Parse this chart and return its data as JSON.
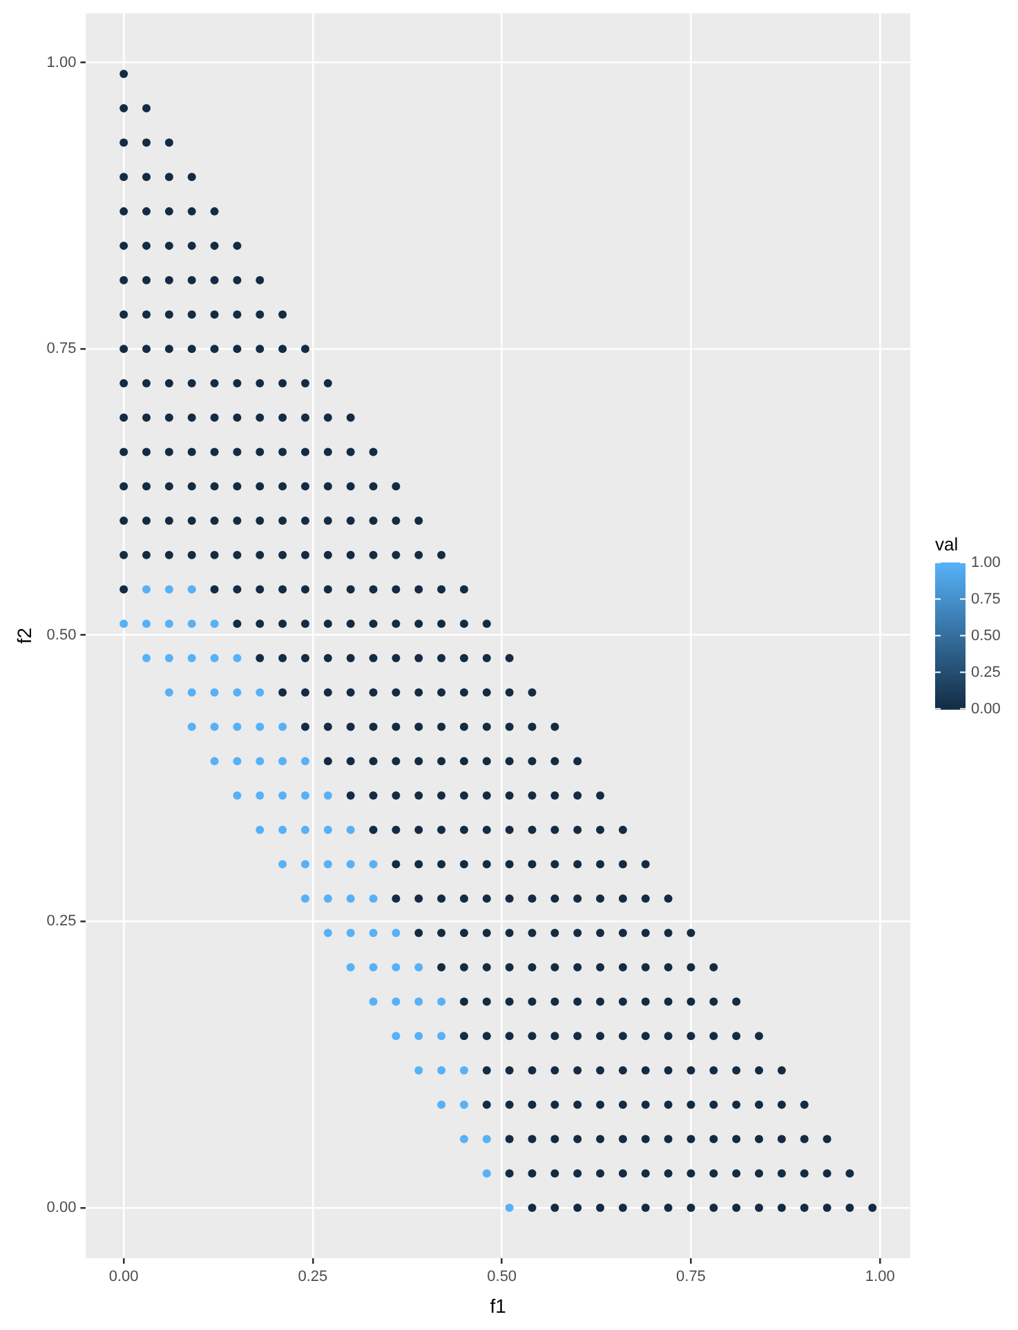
{
  "chart_data": {
    "type": "scatter",
    "xlabel": "f1",
    "ylabel": "f2",
    "clabel": "val",
    "xlim": [
      -0.05,
      1.04
    ],
    "ylim": [
      -0.044,
      1.043
    ],
    "xticks": [
      {
        "value": 0,
        "label": "0.00"
      },
      {
        "value": 0.25,
        "label": "0.25"
      },
      {
        "value": 0.5,
        "label": "0.50"
      },
      {
        "value": 0.75,
        "label": "0.75"
      },
      {
        "value": 1,
        "label": "1.00"
      }
    ],
    "yticks": [
      {
        "value": 0,
        "label": "0.00"
      },
      {
        "value": 0.25,
        "label": "0.25"
      },
      {
        "value": 0.5,
        "label": "0.50"
      },
      {
        "value": 0.75,
        "label": "0.75"
      },
      {
        "value": 1,
        "label": "1.00"
      }
    ],
    "clim": [
      0,
      1
    ],
    "cticks": [
      {
        "value": 0,
        "label": "0.00"
      },
      {
        "value": 0.25,
        "label": "0.25"
      },
      {
        "value": 0.5,
        "label": "0.50"
      },
      {
        "value": 0.75,
        "label": "0.75"
      },
      {
        "value": 1,
        "label": "1.00"
      }
    ],
    "colors": [
      "#132b43",
      "#56b1f7"
    ],
    "grid": true,
    "legend": false,
    "marker": "circle",
    "series": [
      {
        "color": "#132b43",
        "x": [
          0.54,
          0.57,
          0.6,
          0.63,
          0.66,
          0.69,
          0.72,
          0.75,
          0.78,
          0.81,
          0.84,
          0.87,
          0.9,
          0.93,
          0.96,
          0.99,
          0.51,
          0.54,
          0.57,
          0.6,
          0.63,
          0.66,
          0.69,
          0.72,
          0.75,
          0.78,
          0.81,
          0.84,
          0.87,
          0.9,
          0.93,
          0.96,
          0.51,
          0.54,
          0.57,
          0.6,
          0.63,
          0.66,
          0.69,
          0.72,
          0.75,
          0.78,
          0.81,
          0.84,
          0.87,
          0.9,
          0.93,
          0.48,
          0.51,
          0.54,
          0.57,
          0.6,
          0.63,
          0.66,
          0.69,
          0.72,
          0.75,
          0.78,
          0.81,
          0.84,
          0.87,
          0.9,
          0.48,
          0.51,
          0.54,
          0.57,
          0.6,
          0.63,
          0.66,
          0.69,
          0.72,
          0.75,
          0.78,
          0.81,
          0.84,
          0.87,
          0.45,
          0.48,
          0.51,
          0.54,
          0.57,
          0.6,
          0.63,
          0.66,
          0.69,
          0.72,
          0.75,
          0.78,
          0.81,
          0.84,
          0.45,
          0.48,
          0.51,
          0.54,
          0.57,
          0.6,
          0.63,
          0.66,
          0.69,
          0.72,
          0.75,
          0.78,
          0.81,
          0.42,
          0.45,
          0.48,
          0.51,
          0.54,
          0.57,
          0.6,
          0.63,
          0.66,
          0.69,
          0.72,
          0.75,
          0.78,
          0.39,
          0.42,
          0.45,
          0.48,
          0.51,
          0.54,
          0.57,
          0.6,
          0.63,
          0.66,
          0.69,
          0.72,
          0.75,
          0.36,
          0.39,
          0.42,
          0.45,
          0.48,
          0.51,
          0.54,
          0.57,
          0.6,
          0.63,
          0.66,
          0.69,
          0.72,
          0.36,
          0.39,
          0.42,
          0.45,
          0.48,
          0.51,
          0.54,
          0.57,
          0.6,
          0.63,
          0.66,
          0.69,
          0.33,
          0.36,
          0.39,
          0.42,
          0.45,
          0.48,
          0.51,
          0.54,
          0.57,
          0.6,
          0.63,
          0.66,
          0.3,
          0.33,
          0.36,
          0.39,
          0.42,
          0.45,
          0.48,
          0.51,
          0.54,
          0.57,
          0.6,
          0.63,
          0.27,
          0.3,
          0.33,
          0.36,
          0.39,
          0.42,
          0.45,
          0.48,
          0.51,
          0.54,
          0.57,
          0.6,
          0.24,
          0.27,
          0.3,
          0.33,
          0.36,
          0.39,
          0.42,
          0.45,
          0.48,
          0.51,
          0.54,
          0.57,
          0.21,
          0.24,
          0.27,
          0.3,
          0.33,
          0.36,
          0.39,
          0.42,
          0.45,
          0.48,
          0.51,
          0.54,
          0.18,
          0.21,
          0.24,
          0.27,
          0.3,
          0.33,
          0.36,
          0.39,
          0.42,
          0.45,
          0.48,
          0.51,
          0.15,
          0.18,
          0.21,
          0.24,
          0.27,
          0.3,
          0.33,
          0.36,
          0.39,
          0.42,
          0.45,
          0.48,
          0,
          0.12,
          0.15,
          0.18,
          0.21,
          0.24,
          0.27,
          0.3,
          0.33,
          0.36,
          0.39,
          0.42,
          0.45,
          0,
          0.03,
          0.06,
          0.09,
          0.12,
          0.15,
          0.18,
          0.21,
          0.24,
          0.27,
          0.3,
          0.33,
          0.36,
          0.39,
          0.42,
          0,
          0.03,
          0.06,
          0.09,
          0.12,
          0.15,
          0.18,
          0.21,
          0.24,
          0.27,
          0.3,
          0.33,
          0.36,
          0.39,
          0,
          0.03,
          0.06,
          0.09,
          0.12,
          0.15,
          0.18,
          0.21,
          0.24,
          0.27,
          0.3,
          0.33,
          0.36,
          0,
          0.03,
          0.06,
          0.09,
          0.12,
          0.15,
          0.18,
          0.21,
          0.24,
          0.27,
          0.3,
          0.33,
          0,
          0.03,
          0.06,
          0.09,
          0.12,
          0.15,
          0.18,
          0.21,
          0.24,
          0.27,
          0.3,
          0,
          0.03,
          0.06,
          0.09,
          0.12,
          0.15,
          0.18,
          0.21,
          0.24,
          0.27,
          0,
          0.03,
          0.06,
          0.09,
          0.12,
          0.15,
          0.18,
          0.21,
          0.24,
          0,
          0.03,
          0.06,
          0.09,
          0.12,
          0.15,
          0.18,
          0.21,
          0,
          0.03,
          0.06,
          0.09,
          0.12,
          0.15,
          0.18,
          0,
          0.03,
          0.06,
          0.09,
          0.12,
          0.15,
          0,
          0.03,
          0.06,
          0.09,
          0.12,
          0,
          0.03,
          0.06,
          0.09,
          0,
          0.03,
          0.06,
          0,
          0.03,
          0
        ],
        "values": [
          0,
          0,
          0,
          0,
          0,
          0,
          0,
          0,
          0,
          0,
          0,
          0,
          0,
          0,
          0,
          0,
          0.03,
          0.03,
          0.03,
          0.03,
          0.03,
          0.03,
          0.03,
          0.03,
          0.03,
          0.03,
          0.03,
          0.03,
          0.03,
          0.03,
          0.03,
          0.03,
          0.06,
          0.06,
          0.06,
          0.06,
          0.06,
          0.06,
          0.06,
          0.06,
          0.06,
          0.06,
          0.06,
          0.06,
          0.06,
          0.06,
          0.06,
          0.09,
          0.09,
          0.09,
          0.09,
          0.09,
          0.09,
          0.09,
          0.09,
          0.09,
          0.09,
          0.09,
          0.09,
          0.09,
          0.09,
          0.09,
          0.12,
          0.12,
          0.12,
          0.12,
          0.12,
          0.12,
          0.12,
          0.12,
          0.12,
          0.12,
          0.12,
          0.12,
          0.12,
          0.12,
          0.15,
          0.15,
          0.15,
          0.15,
          0.15,
          0.15,
          0.15,
          0.15,
          0.15,
          0.15,
          0.15,
          0.15,
          0.15,
          0.15,
          0.18,
          0.18,
          0.18,
          0.18,
          0.18,
          0.18,
          0.18,
          0.18,
          0.18,
          0.18,
          0.18,
          0.18,
          0.18,
          0.21,
          0.21,
          0.21,
          0.21,
          0.21,
          0.21,
          0.21,
          0.21,
          0.21,
          0.21,
          0.21,
          0.21,
          0.21,
          0.24,
          0.24,
          0.24,
          0.24,
          0.24,
          0.24,
          0.24,
          0.24,
          0.24,
          0.24,
          0.24,
          0.24,
          0.24,
          0.27,
          0.27,
          0.27,
          0.27,
          0.27,
          0.27,
          0.27,
          0.27,
          0.27,
          0.27,
          0.27,
          0.27,
          0.27,
          0.3,
          0.3,
          0.3,
          0.3,
          0.3,
          0.3,
          0.3,
          0.3,
          0.3,
          0.3,
          0.3,
          0.3,
          0.33,
          0.33,
          0.33,
          0.33,
          0.33,
          0.33,
          0.33,
          0.33,
          0.33,
          0.33,
          0.33,
          0.33,
          0.36,
          0.36,
          0.36,
          0.36,
          0.36,
          0.36,
          0.36,
          0.36,
          0.36,
          0.36,
          0.36,
          0.36,
          0.39,
          0.39,
          0.39,
          0.39,
          0.39,
          0.39,
          0.39,
          0.39,
          0.39,
          0.39,
          0.39,
          0.39,
          0.42,
          0.42,
          0.42,
          0.42,
          0.42,
          0.42,
          0.42,
          0.42,
          0.42,
          0.42,
          0.42,
          0.42,
          0.45,
          0.45,
          0.45,
          0.45,
          0.45,
          0.45,
          0.45,
          0.45,
          0.45,
          0.45,
          0.45,
          0.45,
          0.48,
          0.48,
          0.48,
          0.48,
          0.48,
          0.48,
          0.48,
          0.48,
          0.48,
          0.48,
          0.48,
          0.48,
          0.51,
          0.51,
          0.51,
          0.51,
          0.51,
          0.51,
          0.51,
          0.51,
          0.51,
          0.51,
          0.51,
          0.51,
          0.54,
          0.54,
          0.54,
          0.54,
          0.54,
          0.54,
          0.54,
          0.54,
          0.54,
          0.54,
          0.54,
          0.54,
          0.54,
          0.57,
          0.57,
          0.57,
          0.57,
          0.57,
          0.57,
          0.57,
          0.57,
          0.57,
          0.57,
          0.57,
          0.57,
          0.57,
          0.57,
          0.57,
          0.6,
          0.6,
          0.6,
          0.6,
          0.6,
          0.6,
          0.6,
          0.6,
          0.6,
          0.6,
          0.6,
          0.6,
          0.6,
          0.6,
          0.63,
          0.63,
          0.63,
          0.63,
          0.63,
          0.63,
          0.63,
          0.63,
          0.63,
          0.63,
          0.63,
          0.63,
          0.63,
          0.66,
          0.66,
          0.66,
          0.66,
          0.66,
          0.66,
          0.66,
          0.66,
          0.66,
          0.66,
          0.66,
          0.66,
          0.69,
          0.69,
          0.69,
          0.69,
          0.69,
          0.69,
          0.69,
          0.69,
          0.69,
          0.69,
          0.69,
          0.72,
          0.72,
          0.72,
          0.72,
          0.72,
          0.72,
          0.72,
          0.72,
          0.72,
          0.72,
          0.75,
          0.75,
          0.75,
          0.75,
          0.75,
          0.75,
          0.75,
          0.75,
          0.75,
          0.78,
          0.78,
          0.78,
          0.78,
          0.78,
          0.78,
          0.78,
          0.78,
          0.81,
          0.81,
          0.81,
          0.81,
          0.81,
          0.81,
          0.81,
          0.84,
          0.84,
          0.84,
          0.84,
          0.84,
          0.84,
          0.87,
          0.87,
          0.87,
          0.87,
          0.87,
          0.9,
          0.9,
          0.9,
          0.9,
          0.93,
          0.93,
          0.93,
          0.96,
          0.96,
          0.99
        ]
      },
      {
        "color": "#56b1f7",
        "x": [
          0.51,
          0.48,
          0.45,
          0.48,
          0.42,
          0.45,
          0.39,
          0.42,
          0.45,
          0.36,
          0.39,
          0.42,
          0.33,
          0.36,
          0.39,
          0.42,
          0.3,
          0.33,
          0.36,
          0.39,
          0.27,
          0.3,
          0.33,
          0.36,
          0.24,
          0.27,
          0.3,
          0.33,
          0.21,
          0.24,
          0.27,
          0.3,
          0.33,
          0.18,
          0.21,
          0.24,
          0.27,
          0.3,
          0.15,
          0.18,
          0.21,
          0.24,
          0.27,
          0.12,
          0.15,
          0.18,
          0.21,
          0.24,
          0.09,
          0.12,
          0.15,
          0.18,
          0.21,
          0.06,
          0.09,
          0.12,
          0.15,
          0.18,
          0.03,
          0.06,
          0.09,
          0.12,
          0.15,
          0,
          0.03,
          0.06,
          0.09,
          0.12,
          0.03,
          0.06,
          0.09
        ],
        "values": [
          0,
          0.03,
          0.06,
          0.06,
          0.09,
          0.09,
          0.12,
          0.12,
          0.12,
          0.15,
          0.15,
          0.15,
          0.18,
          0.18,
          0.18,
          0.18,
          0.21,
          0.21,
          0.21,
          0.21,
          0.24,
          0.24,
          0.24,
          0.24,
          0.27,
          0.27,
          0.27,
          0.27,
          0.3,
          0.3,
          0.3,
          0.3,
          0.3,
          0.33,
          0.33,
          0.33,
          0.33,
          0.33,
          0.36,
          0.36,
          0.36,
          0.36,
          0.36,
          0.39,
          0.39,
          0.39,
          0.39,
          0.39,
          0.42,
          0.42,
          0.42,
          0.42,
          0.42,
          0.45,
          0.45,
          0.45,
          0.45,
          0.45,
          0.48,
          0.48,
          0.48,
          0.48,
          0.48,
          0.51,
          0.51,
          0.51,
          0.51,
          0.51,
          0.54,
          0.54,
          0.54
        ]
      }
    ]
  }
}
